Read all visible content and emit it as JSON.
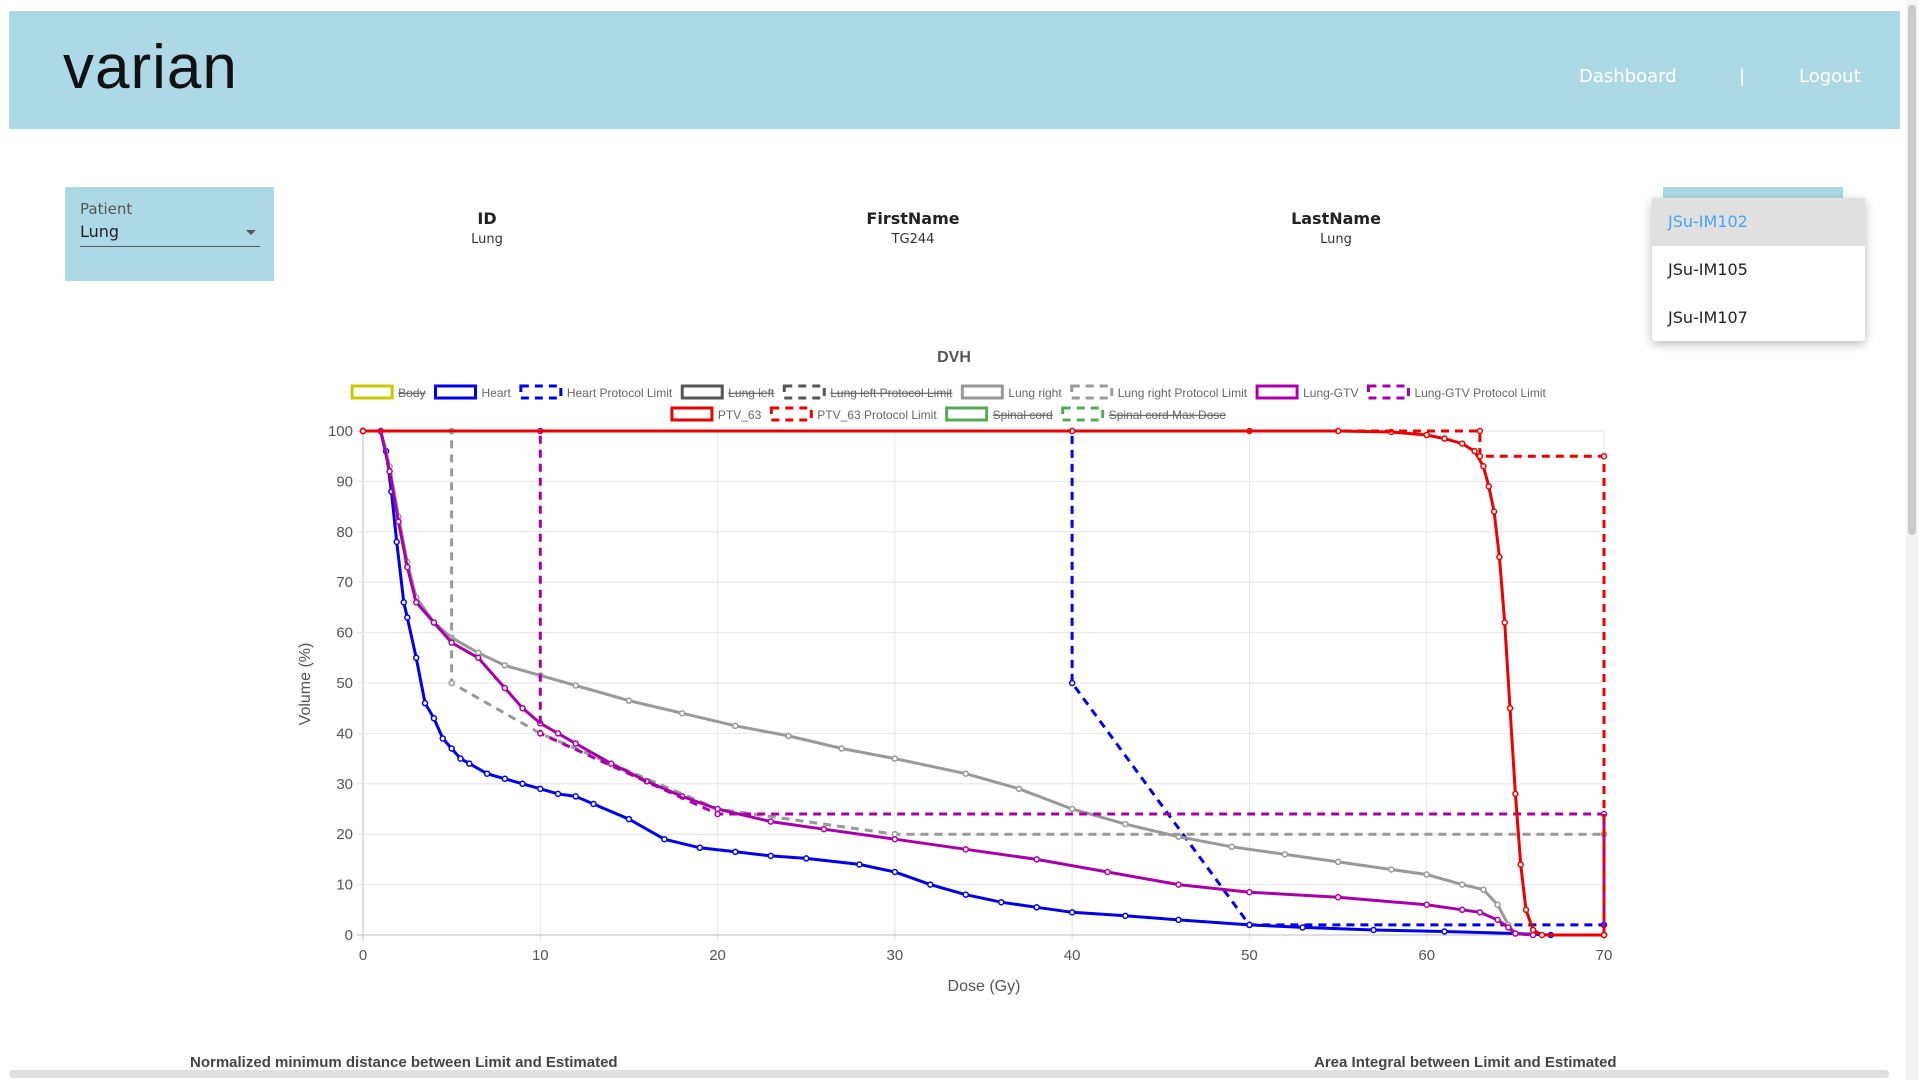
{
  "header": {
    "logo": "varian",
    "nav": {
      "dashboard": "Dashboard",
      "separator": "|",
      "logout": "Logout"
    }
  },
  "patient": {
    "label": "Patient",
    "value": "Lung"
  },
  "info": [
    {
      "heading": "ID",
      "value": "Lung"
    },
    {
      "heading": "FirstName",
      "value": "TG244"
    },
    {
      "heading": "LastName",
      "value": "Lung"
    }
  ],
  "plan_menu": {
    "items": [
      "JSu-IM102",
      "JSu-IM105",
      "JSu-IM107"
    ],
    "selected": "JSu-IM102"
  },
  "bottom": {
    "left_caption": "Normalized minimum distance between Limit and Estimated",
    "right_caption": "Area Integral between Limit and Estimated"
  },
  "colors": {
    "header_bg": "#add8e6",
    "accent": "#42a5f5"
  },
  "chart_data": {
    "type": "line",
    "title": "DVH",
    "xlabel": "Dose (Gy)",
    "ylabel": "Volume (%)",
    "xlim": [
      0,
      70
    ],
    "ylim": [
      0,
      100
    ],
    "xticks": [
      "0",
      "10",
      "20",
      "30",
      "40",
      "50",
      "60",
      "70"
    ],
    "yticks": [
      "0",
      "10",
      "20",
      "30",
      "40",
      "50",
      "60",
      "70",
      "80",
      "90",
      "100"
    ],
    "grid": true,
    "legend_position": "top",
    "series": [
      {
        "name": "Body",
        "color": "#c8c800",
        "dashed": false,
        "hidden": true,
        "points": []
      },
      {
        "name": "Heart",
        "color": "#0000ee",
        "dashed": false,
        "hidden": false,
        "points": [
          [
            0,
            100
          ],
          [
            1,
            100
          ],
          [
            1.3,
            96
          ],
          [
            1.6,
            88
          ],
          [
            1.9,
            78
          ],
          [
            2.3,
            66
          ],
          [
            2.5,
            63
          ],
          [
            3,
            55
          ],
          [
            3.5,
            46
          ],
          [
            4,
            43
          ],
          [
            4.5,
            39
          ],
          [
            5,
            37
          ],
          [
            5.5,
            35
          ],
          [
            6,
            34
          ],
          [
            7,
            32
          ],
          [
            8,
            31
          ],
          [
            9,
            30
          ],
          [
            10,
            29
          ],
          [
            11,
            28
          ],
          [
            12,
            27.5
          ],
          [
            13,
            26
          ],
          [
            15,
            23
          ],
          [
            17,
            19
          ],
          [
            19,
            17.3
          ],
          [
            21,
            16.5
          ],
          [
            23,
            15.7
          ],
          [
            25,
            15.2
          ],
          [
            28,
            14
          ],
          [
            30,
            12.5
          ],
          [
            32,
            10
          ],
          [
            34,
            8
          ],
          [
            36,
            6.5
          ],
          [
            38,
            5.5
          ],
          [
            40,
            4.5
          ],
          [
            43,
            3.8
          ],
          [
            46,
            3
          ],
          [
            50,
            2
          ],
          [
            53,
            1.5
          ],
          [
            57,
            1
          ],
          [
            61,
            0.7
          ],
          [
            65,
            0.3
          ],
          [
            67,
            0
          ]
        ]
      },
      {
        "name": "Heart Protocol Limit",
        "color": "#0000ee",
        "dashed": true,
        "hidden": false,
        "points": [
          [
            0,
            100
          ],
          [
            40,
            100
          ],
          [
            40,
            50
          ],
          [
            50,
            2
          ],
          [
            70,
            2
          ],
          [
            70,
            0
          ]
        ]
      },
      {
        "name": "Lung left",
        "color": "#555555",
        "dashed": false,
        "hidden": true,
        "points": []
      },
      {
        "name": "Lung left Protocol Limit",
        "color": "#555555",
        "dashed": true,
        "hidden": true,
        "points": []
      },
      {
        "name": "Lung right",
        "color": "#999999",
        "dashed": false,
        "hidden": false,
        "points": [
          [
            0,
            100
          ],
          [
            1,
            100
          ],
          [
            1.5,
            93
          ],
          [
            2,
            83
          ],
          [
            2.5,
            74
          ],
          [
            3,
            67
          ],
          [
            4,
            62
          ],
          [
            5,
            59
          ],
          [
            6.5,
            56
          ],
          [
            8,
            53.5
          ],
          [
            10,
            51.5
          ],
          [
            12,
            49.5
          ],
          [
            15,
            46.5
          ],
          [
            18,
            44
          ],
          [
            21,
            41.5
          ],
          [
            24,
            39.5
          ],
          [
            27,
            37
          ],
          [
            30,
            35
          ],
          [
            34,
            32
          ],
          [
            37,
            29
          ],
          [
            40,
            25
          ],
          [
            43,
            22
          ],
          [
            46,
            19.5
          ],
          [
            49,
            17.5
          ],
          [
            52,
            16
          ],
          [
            55,
            14.5
          ],
          [
            58,
            13
          ],
          [
            60,
            12
          ],
          [
            62,
            10
          ],
          [
            63.2,
            9
          ],
          [
            64,
            6
          ],
          [
            64.6,
            2
          ],
          [
            65,
            0.3
          ],
          [
            66,
            0
          ]
        ]
      },
      {
        "name": "Lung right Protocol Limit",
        "color": "#999999",
        "dashed": true,
        "hidden": false,
        "points": [
          [
            0,
            100
          ],
          [
            5,
            100
          ],
          [
            5,
            50
          ],
          [
            10,
            40
          ],
          [
            20,
            25
          ],
          [
            30,
            20
          ],
          [
            70,
            20
          ],
          [
            70,
            0
          ]
        ]
      },
      {
        "name": "Lung-GTV",
        "color": "#aa00aa",
        "dashed": false,
        "hidden": false,
        "points": [
          [
            0,
            100
          ],
          [
            1,
            100
          ],
          [
            1.5,
            92
          ],
          [
            2,
            82
          ],
          [
            2.5,
            73
          ],
          [
            3,
            66
          ],
          [
            4,
            62
          ],
          [
            5,
            58
          ],
          [
            6.5,
            55
          ],
          [
            8,
            49
          ],
          [
            9,
            45
          ],
          [
            10,
            42
          ],
          [
            11,
            40
          ],
          [
            12,
            38
          ],
          [
            14,
            34
          ],
          [
            16,
            30.5
          ],
          [
            18,
            27.5
          ],
          [
            20,
            25
          ],
          [
            23,
            22.5
          ],
          [
            26,
            21
          ],
          [
            30,
            19
          ],
          [
            34,
            17
          ],
          [
            38,
            15
          ],
          [
            42,
            12.5
          ],
          [
            46,
            10
          ],
          [
            50,
            8.5
          ],
          [
            55,
            7.5
          ],
          [
            60,
            6
          ],
          [
            62,
            5
          ],
          [
            63,
            4.5
          ],
          [
            64,
            3
          ],
          [
            64.6,
            1.5
          ],
          [
            65,
            0.3
          ],
          [
            66,
            0
          ]
        ]
      },
      {
        "name": "Lung-GTV Protocol Limit",
        "color": "#aa00aa",
        "dashed": true,
        "hidden": false,
        "points": [
          [
            0,
            100
          ],
          [
            10,
            100
          ],
          [
            10,
            40
          ],
          [
            20,
            24
          ],
          [
            70,
            24
          ],
          [
            70,
            0
          ]
        ]
      },
      {
        "name": "PTV_63",
        "color": "#ee0000",
        "dashed": false,
        "hidden": false,
        "points": [
          [
            0,
            100
          ],
          [
            40,
            100
          ],
          [
            50,
            100
          ],
          [
            55,
            100
          ],
          [
            58,
            99.8
          ],
          [
            60,
            99.2
          ],
          [
            61,
            98.5
          ],
          [
            62,
            97.5
          ],
          [
            62.7,
            96
          ],
          [
            63.2,
            93
          ],
          [
            63.5,
            89
          ],
          [
            63.8,
            84
          ],
          [
            64.1,
            75
          ],
          [
            64.4,
            62
          ],
          [
            64.7,
            45
          ],
          [
            65,
            28
          ],
          [
            65.3,
            14
          ],
          [
            65.6,
            5
          ],
          [
            66,
            1
          ],
          [
            66.5,
            0
          ],
          [
            70,
            0
          ]
        ]
      },
      {
        "name": "PTV_63 Protocol Limit",
        "color": "#ee0000",
        "dashed": true,
        "hidden": false,
        "points": [
          [
            0,
            100
          ],
          [
            63,
            100
          ],
          [
            63,
            95
          ],
          [
            70,
            95
          ],
          [
            70,
            0
          ]
        ]
      },
      {
        "name": "Spinal cord",
        "color": "#55aa55",
        "dashed": false,
        "hidden": true,
        "points": []
      },
      {
        "name": "Spinal cord Max Dose",
        "color": "#55aa55",
        "dashed": true,
        "hidden": true,
        "points": []
      }
    ]
  }
}
